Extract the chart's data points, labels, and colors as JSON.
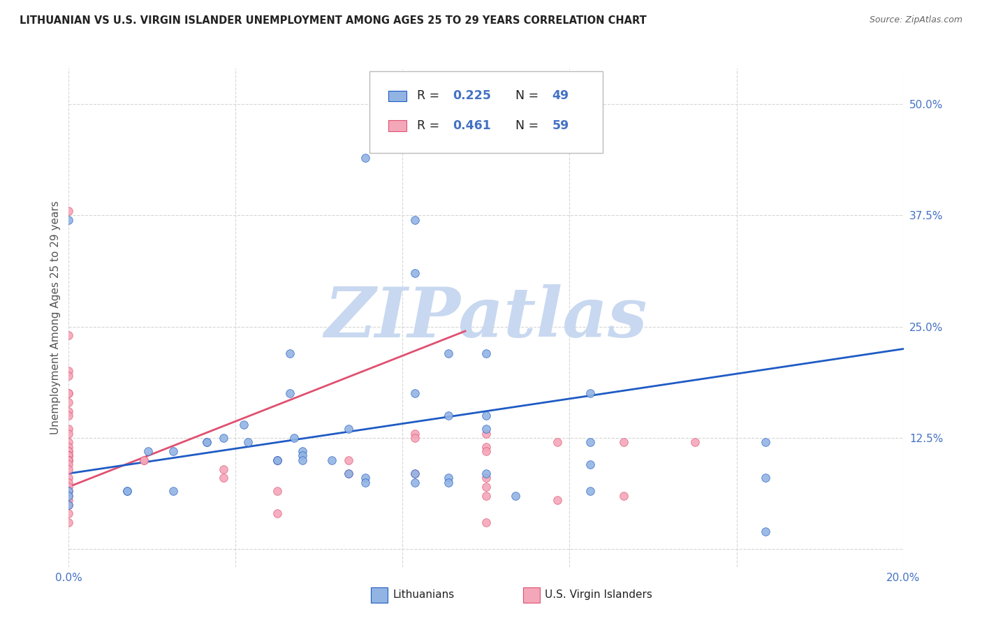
{
  "title": "LITHUANIAN VS U.S. VIRGIN ISLANDER UNEMPLOYMENT AMONG AGES 25 TO 29 YEARS CORRELATION CHART",
  "source": "Source: ZipAtlas.com",
  "ylabel": "Unemployment Among Ages 25 to 29 years",
  "xlim": [
    0.0,
    0.2
  ],
  "ylim": [
    -0.02,
    0.54
  ],
  "xticks": [
    0.0,
    0.04,
    0.08,
    0.12,
    0.16,
    0.2
  ],
  "yticks": [
    0.0,
    0.125,
    0.25,
    0.375,
    0.5
  ],
  "background_color": "#ffffff",
  "watermark": "ZIPatlas",
  "watermark_color": "#c8d8f0",
  "grid_color": "#cccccc",
  "title_color": "#222222",
  "axis_color": "#4472c4",
  "blue_color": "#92b4e3",
  "pink_color": "#f4a7b9",
  "blue_line_color": "#1f5bc4",
  "pink_line_color": "#e05070",
  "legend_R1": "0.225",
  "legend_N1": "49",
  "legend_R2": "0.461",
  "legend_N2": "59",
  "blue_scatter_x": [
    0.071,
    0.0,
    0.083,
    0.083,
    0.091,
    0.053,
    0.1,
    0.053,
    0.083,
    0.125,
    0.091,
    0.1,
    0.1,
    0.067,
    0.042,
    0.037,
    0.054,
    0.033,
    0.043,
    0.033,
    0.025,
    0.019,
    0.056,
    0.056,
    0.063,
    0.056,
    0.05,
    0.05,
    0.125,
    0.067,
    0.1,
    0.083,
    0.071,
    0.091,
    0.083,
    0.071,
    0.091,
    0.125,
    0.0,
    0.0,
    0.014,
    0.014,
    0.025,
    0.125,
    0.167,
    0.0,
    0.107,
    0.167,
    0.167
  ],
  "blue_scatter_y": [
    0.44,
    0.37,
    0.37,
    0.31,
    0.22,
    0.22,
    0.22,
    0.175,
    0.175,
    0.175,
    0.15,
    0.15,
    0.135,
    0.135,
    0.14,
    0.125,
    0.125,
    0.12,
    0.12,
    0.12,
    0.11,
    0.11,
    0.11,
    0.105,
    0.1,
    0.1,
    0.1,
    0.1,
    0.095,
    0.085,
    0.085,
    0.085,
    0.08,
    0.08,
    0.075,
    0.075,
    0.075,
    0.065,
    0.065,
    0.05,
    0.065,
    0.065,
    0.065,
    0.12,
    0.12,
    0.06,
    0.06,
    0.08,
    0.02
  ],
  "pink_scatter_x": [
    0.0,
    0.0,
    0.0,
    0.0,
    0.0,
    0.0,
    0.0,
    0.0,
    0.0,
    0.0,
    0.0,
    0.0,
    0.0,
    0.0,
    0.0,
    0.0,
    0.0,
    0.0,
    0.0,
    0.0,
    0.0,
    0.0,
    0.0,
    0.0,
    0.0,
    0.0,
    0.0,
    0.0,
    0.0,
    0.0,
    0.0,
    0.0,
    0.0,
    0.0,
    0.0,
    0.018,
    0.018,
    0.037,
    0.037,
    0.05,
    0.05,
    0.05,
    0.067,
    0.067,
    0.083,
    0.083,
    0.083,
    0.1,
    0.1,
    0.1,
    0.1,
    0.1,
    0.1,
    0.1,
    0.117,
    0.117,
    0.133,
    0.133,
    0.15
  ],
  "pink_scatter_y": [
    0.38,
    0.24,
    0.2,
    0.195,
    0.175,
    0.175,
    0.165,
    0.155,
    0.15,
    0.135,
    0.13,
    0.12,
    0.115,
    0.11,
    0.11,
    0.105,
    0.105,
    0.105,
    0.105,
    0.1,
    0.1,
    0.1,
    0.1,
    0.1,
    0.095,
    0.09,
    0.08,
    0.075,
    0.07,
    0.065,
    0.06,
    0.055,
    0.05,
    0.04,
    0.03,
    0.1,
    0.1,
    0.09,
    0.08,
    0.1,
    0.065,
    0.04,
    0.1,
    0.085,
    0.13,
    0.125,
    0.085,
    0.13,
    0.115,
    0.11,
    0.08,
    0.07,
    0.06,
    0.03,
    0.12,
    0.055,
    0.12,
    0.06,
    0.12
  ],
  "blue_trend_x": [
    0.0,
    0.2
  ],
  "blue_trend_y": [
    0.085,
    0.225
  ],
  "pink_trend_x": [
    0.0,
    0.095
  ],
  "pink_trend_y": [
    0.07,
    0.245
  ]
}
